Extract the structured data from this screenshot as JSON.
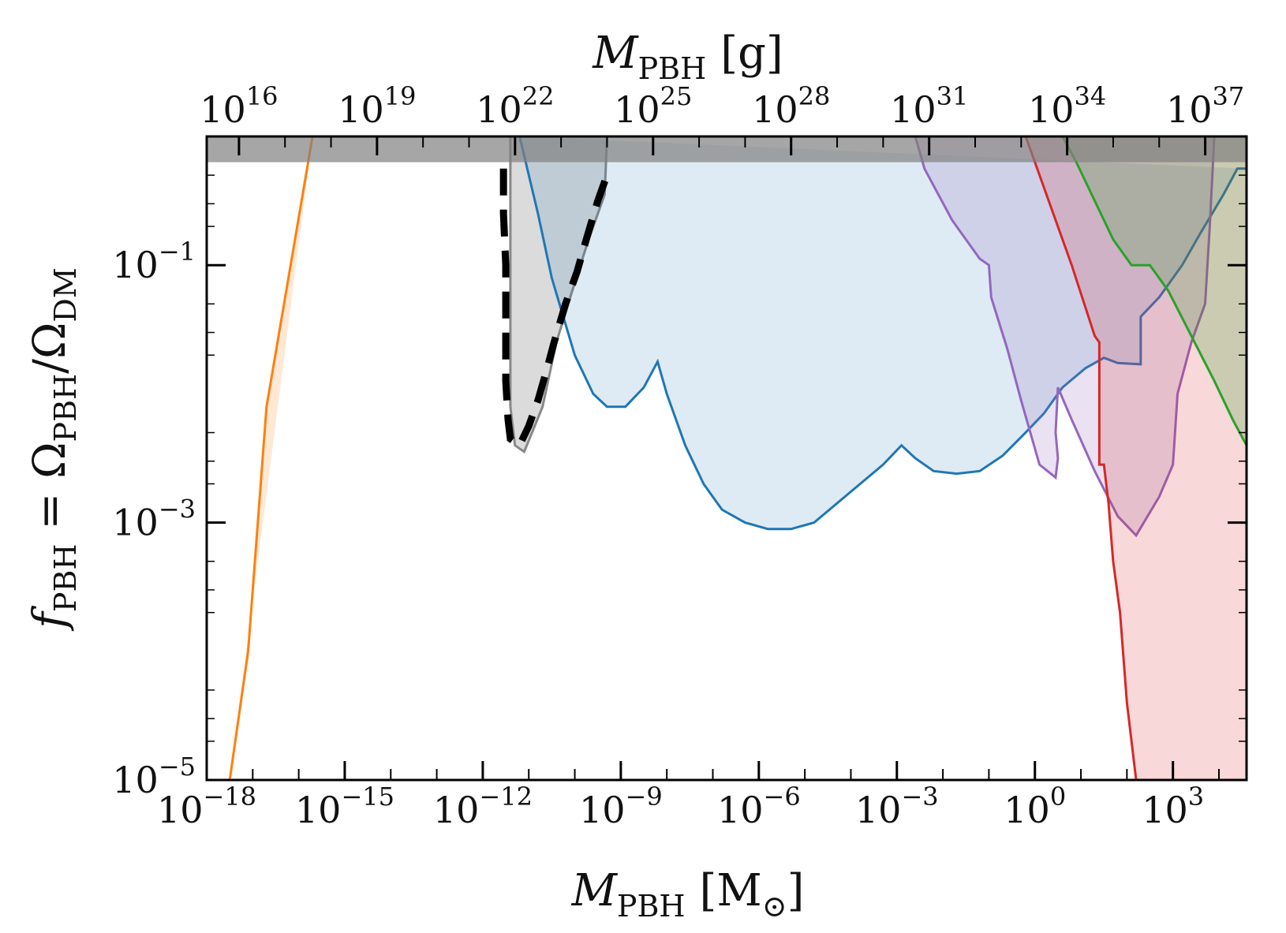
{
  "chart_data": {
    "type": "area",
    "xlabel": {
      "main": "M",
      "sub": "PBH",
      "unit": "[M",
      "unit_sub": "⊙",
      "unit_close": "]"
    },
    "x2label": {
      "main": "M",
      "sub": "PBH",
      "unit": "[g]"
    },
    "ylabel": {
      "f": "f",
      "f_sub": "PBH",
      "eq": " = Ω",
      "num_sub": "PBH",
      "slash": "/Ω",
      "den_sub": "DM"
    },
    "x_scale": "log",
    "y_scale": "log",
    "xlim_log10": [
      -18.0,
      4.6
    ],
    "ylim_log10": [
      -5.0,
      0.0
    ],
    "x_ticks": [
      {
        "base": "10",
        "exp": "−18",
        "v": -18
      },
      {
        "base": "10",
        "exp": "−15",
        "v": -15
      },
      {
        "base": "10",
        "exp": "−12",
        "v": -12
      },
      {
        "base": "10",
        "exp": "−9",
        "v": -9
      },
      {
        "base": "10",
        "exp": "−6",
        "v": -6
      },
      {
        "base": "10",
        "exp": "−3",
        "v": -3
      },
      {
        "base": "10",
        "exp": "0",
        "v": 0
      },
      {
        "base": "10",
        "exp": "3",
        "v": 3
      }
    ],
    "x2_ticks": [
      {
        "base": "10",
        "exp": "16",
        "v": 16
      },
      {
        "base": "10",
        "exp": "19",
        "v": 19
      },
      {
        "base": "10",
        "exp": "22",
        "v": 22
      },
      {
        "base": "10",
        "exp": "25",
        "v": 25
      },
      {
        "base": "10",
        "exp": "28",
        "v": 28
      },
      {
        "base": "10",
        "exp": "31",
        "v": 31
      },
      {
        "base": "10",
        "exp": "34",
        "v": 34
      },
      {
        "base": "10",
        "exp": "37",
        "v": 37
      }
    ],
    "y_ticks": [
      {
        "base": "10",
        "exp": "−1",
        "v": -1
      },
      {
        "base": "10",
        "exp": "−3",
        "v": -3
      },
      {
        "base": "10",
        "exp": "−5",
        "v": -5
      }
    ],
    "band": {
      "color": "#808080",
      "opacity": 0.7,
      "y_log10_min": -0.2
    },
    "series": [
      {
        "id": "orange",
        "color": "#ff7f0e",
        "fill_opacity": 0.18,
        "points": [
          [
            -15.7,
            0.0
          ],
          [
            -16.7,
            -2.1
          ],
          [
            -17.1,
            -4.0
          ],
          [
            -17.5,
            -5.0
          ]
        ]
      },
      {
        "id": "gray",
        "color": "#888888",
        "fill_opacity": 0.3,
        "points": [
          [
            -11.4,
            0.0
          ],
          [
            -11.4,
            -0.5
          ],
          [
            -11.4,
            -1.0
          ],
          [
            -11.4,
            -1.6
          ],
          [
            -11.4,
            -2.1
          ],
          [
            -11.3,
            -2.4
          ],
          [
            -11.1,
            -2.45
          ],
          [
            -10.7,
            -2.1
          ],
          [
            -10.4,
            -1.6
          ],
          [
            -10.1,
            -1.25
          ],
          [
            -9.7,
            -0.8
          ],
          [
            -9.35,
            -0.45
          ],
          [
            -9.3,
            0.0
          ]
        ]
      },
      {
        "id": "blue",
        "color": "#1f77b4",
        "fill_opacity": 0.15,
        "points": [
          [
            -11.2,
            0.0
          ],
          [
            -10.8,
            -0.6
          ],
          [
            -10.5,
            -1.1
          ],
          [
            -10.0,
            -1.7
          ],
          [
            -9.6,
            -2.0
          ],
          [
            -9.3,
            -2.1
          ],
          [
            -8.9,
            -2.1
          ],
          [
            -8.5,
            -1.95
          ],
          [
            -8.2,
            -1.75
          ],
          [
            -8.0,
            -2.0
          ],
          [
            -7.6,
            -2.4
          ],
          [
            -7.2,
            -2.7
          ],
          [
            -6.8,
            -2.9
          ],
          [
            -6.3,
            -3.0
          ],
          [
            -5.8,
            -3.05
          ],
          [
            -5.3,
            -3.05
          ],
          [
            -4.8,
            -3.0
          ],
          [
            -4.3,
            -2.85
          ],
          [
            -3.8,
            -2.7
          ],
          [
            -3.3,
            -2.55
          ],
          [
            -2.9,
            -2.4
          ],
          [
            -2.6,
            -2.5
          ],
          [
            -2.2,
            -2.6
          ],
          [
            -1.7,
            -2.62
          ],
          [
            -1.2,
            -2.6
          ],
          [
            -0.7,
            -2.48
          ],
          [
            -0.2,
            -2.3
          ],
          [
            0.2,
            -2.15
          ],
          [
            0.6,
            -1.95
          ],
          [
            1.1,
            -1.8
          ],
          [
            1.5,
            -1.72
          ],
          [
            1.8,
            -1.76
          ],
          [
            2.3,
            -1.77
          ],
          [
            2.3,
            -1.4
          ],
          [
            2.7,
            -1.25
          ],
          [
            3.2,
            -1.0
          ],
          [
            3.6,
            -0.75
          ],
          [
            4.1,
            -0.45
          ],
          [
            4.4,
            -0.25
          ],
          [
            4.6,
            -0.25
          ]
        ]
      },
      {
        "id": "purple",
        "color": "#9467bd",
        "fill_opacity": 0.2,
        "points": [
          [
            -2.6,
            0.0
          ],
          [
            -2.4,
            -0.25
          ],
          [
            -1.8,
            -0.65
          ],
          [
            -1.2,
            -0.95
          ],
          [
            -1.0,
            -1.0
          ],
          [
            -0.95,
            -1.25
          ],
          [
            -0.6,
            -1.65
          ],
          [
            -0.3,
            -2.05
          ],
          [
            0.1,
            -2.55
          ],
          [
            0.45,
            -2.65
          ],
          [
            0.5,
            -2.5
          ],
          [
            0.45,
            -2.3
          ],
          [
            0.5,
            -1.95
          ],
          [
            0.8,
            -2.2
          ],
          [
            1.3,
            -2.6
          ],
          [
            1.8,
            -2.95
          ],
          [
            2.2,
            -3.1
          ],
          [
            2.7,
            -2.8
          ],
          [
            3.0,
            -2.55
          ],
          [
            3.1,
            -2.0
          ],
          [
            3.4,
            -1.6
          ],
          [
            3.7,
            -1.3
          ],
          [
            3.8,
            -0.7
          ],
          [
            3.9,
            0.0
          ]
        ]
      },
      {
        "id": "red",
        "color": "#d62728",
        "fill_opacity": 0.18,
        "points": [
          [
            -0.2,
            0.0
          ],
          [
            0.3,
            -0.5
          ],
          [
            0.8,
            -1.0
          ],
          [
            1.3,
            -1.55
          ],
          [
            1.4,
            -1.6
          ],
          [
            1.4,
            -2.55
          ],
          [
            1.5,
            -2.55
          ],
          [
            1.6,
            -2.85
          ],
          [
            1.7,
            -3.3
          ],
          [
            1.85,
            -3.7
          ],
          [
            2.0,
            -4.4
          ],
          [
            2.2,
            -5.0
          ],
          [
            4.6,
            -5.0
          ],
          [
            4.6,
            0.0
          ]
        ]
      },
      {
        "id": "green",
        "color": "#2ca02c",
        "fill_opacity": 0.22,
        "points": [
          [
            0.6,
            0.0
          ],
          [
            0.9,
            -0.2
          ],
          [
            1.3,
            -0.5
          ],
          [
            1.7,
            -0.8
          ],
          [
            2.1,
            -1.0
          ],
          [
            2.5,
            -1.0
          ],
          [
            2.9,
            -1.2
          ],
          [
            3.4,
            -1.55
          ],
          [
            3.9,
            -1.9
          ],
          [
            4.3,
            -2.2
          ],
          [
            4.6,
            -2.4
          ],
          [
            4.6,
            0.0
          ]
        ]
      }
    ],
    "dashed_curve": {
      "color": "#000000",
      "points": [
        [
          -11.55,
          -0.25
        ],
        [
          -11.55,
          -0.6
        ],
        [
          -11.5,
          -1.0
        ],
        [
          -11.5,
          -1.5
        ],
        [
          -11.5,
          -1.9
        ],
        [
          -11.45,
          -2.2
        ],
        [
          -11.4,
          -2.35
        ],
        [
          -11.2,
          -2.4
        ],
        [
          -11.0,
          -2.25
        ],
        [
          -10.8,
          -2.05
        ],
        [
          -10.6,
          -1.8
        ],
        [
          -10.45,
          -1.6
        ],
        [
          -10.2,
          -1.3
        ],
        [
          -9.95,
          -1.05
        ],
        [
          -9.75,
          -0.8
        ],
        [
          -9.5,
          -0.5
        ],
        [
          -9.3,
          -0.3
        ]
      ]
    }
  }
}
